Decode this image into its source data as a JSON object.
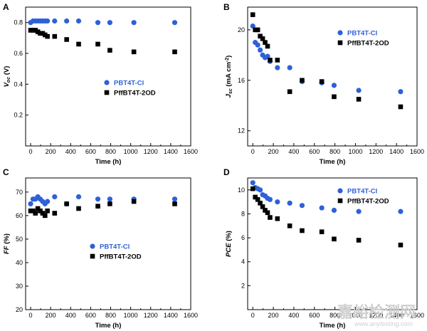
{
  "chart_data": [
    {
      "type": "scatter",
      "panel": "A",
      "xlabel": "Time (h)",
      "ylabel": "V",
      "ylabel_sub": "oc",
      "ylabel_unit": " (V)",
      "xlim": [
        -50,
        1600
      ],
      "ylim": [
        0,
        0.9
      ],
      "xticks": [
        0,
        200,
        400,
        600,
        800,
        1000,
        1200,
        1400,
        1600
      ],
      "yticks": [
        0.2,
        0.4,
        0.6,
        0.8
      ],
      "ytick_labels": [
        "0.2",
        "0.4",
        "0.6",
        "0.8"
      ],
      "legend_position": "bottom-center",
      "series": [
        {
          "name": "PBT4T-Cl",
          "color": "#2e61d8",
          "marker": "circle",
          "x": [
            0,
            24,
            48,
            72,
            96,
            120,
            144,
            168,
            240,
            360,
            480,
            672,
            792,
            1032,
            1440
          ],
          "y": [
            0.8,
            0.81,
            0.81,
            0.81,
            0.81,
            0.81,
            0.81,
            0.81,
            0.81,
            0.81,
            0.81,
            0.8,
            0.8,
            0.8,
            0.8
          ]
        },
        {
          "name": "PffBT4T-2OD",
          "color": "#000000",
          "marker": "square",
          "x": [
            0,
            24,
            48,
            72,
            96,
            120,
            144,
            168,
            240,
            360,
            480,
            672,
            792,
            1032,
            1440
          ],
          "y": [
            0.75,
            0.75,
            0.75,
            0.74,
            0.73,
            0.73,
            0.72,
            0.71,
            0.71,
            0.69,
            0.66,
            0.66,
            0.62,
            0.61,
            0.61
          ]
        }
      ]
    },
    {
      "type": "scatter",
      "panel": "B",
      "xlabel": "Time (h)",
      "ylabel": "J",
      "ylabel_sub": "sc",
      "ylabel_unit": " (mA cm",
      "ylabel_sup": "-2",
      "ylabel_end": ")",
      "xlim": [
        -50,
        1600
      ],
      "ylim": [
        10.8,
        21.8
      ],
      "xticks": [
        0,
        200,
        400,
        600,
        800,
        1000,
        1200,
        1400,
        1600
      ],
      "yticks": [
        12,
        16,
        20
      ],
      "ytick_labels": [
        "12",
        "16",
        "20"
      ],
      "legend_position": "top-right",
      "series": [
        {
          "name": "PBT4T-Cl",
          "color": "#2e61d8",
          "marker": "circle",
          "x": [
            0,
            24,
            48,
            72,
            96,
            120,
            144,
            168,
            240,
            360,
            480,
            672,
            792,
            1032,
            1440
          ],
          "y": [
            20.3,
            19.0,
            18.8,
            18.4,
            18.0,
            17.8,
            17.9,
            17.5,
            17.0,
            17.0,
            15.9,
            15.8,
            15.6,
            15.2,
            15.1
          ]
        },
        {
          "name": "PffBT4T-2OD",
          "color": "#000000",
          "marker": "square",
          "x": [
            0,
            24,
            48,
            72,
            96,
            120,
            144,
            168,
            240,
            360,
            480,
            672,
            792,
            1032,
            1440
          ],
          "y": [
            21.2,
            20.0,
            20.0,
            19.5,
            19.3,
            19.0,
            18.7,
            17.6,
            17.6,
            15.1,
            16.0,
            15.9,
            14.7,
            14.5,
            13.9
          ]
        }
      ]
    },
    {
      "type": "scatter",
      "panel": "C",
      "xlabel": "Time (h)",
      "ylabel": "FF",
      "ylabel_sub": "",
      "ylabel_unit": " (%)",
      "xlim": [
        -50,
        1600
      ],
      "ylim": [
        20,
        76
      ],
      "xticks": [
        0,
        200,
        400,
        600,
        800,
        1000,
        1200,
        1400,
        1600
      ],
      "yticks": [
        20,
        30,
        40,
        50,
        60,
        70
      ],
      "ytick_labels": [
        "20",
        "30",
        "40",
        "50",
        "60",
        "70"
      ],
      "legend_position": "center",
      "series": [
        {
          "name": "PBT4T-Cl",
          "color": "#2e61d8",
          "marker": "circle",
          "x": [
            0,
            24,
            48,
            72,
            96,
            120,
            144,
            168,
            240,
            360,
            480,
            672,
            792,
            1032,
            1440
          ],
          "y": [
            65,
            67,
            67,
            68,
            67,
            66,
            65,
            66,
            68,
            65,
            68,
            67,
            67,
            67,
            67
          ]
        },
        {
          "name": "PffBT4T-2OD",
          "color": "#000000",
          "marker": "square",
          "x": [
            0,
            24,
            48,
            72,
            96,
            120,
            144,
            168,
            240,
            360,
            480,
            672,
            792,
            1032,
            1440
          ],
          "y": [
            62,
            62,
            61,
            63,
            62,
            61,
            60,
            62,
            61,
            65,
            63,
            64,
            65,
            66,
            65
          ]
        }
      ]
    },
    {
      "type": "scatter",
      "panel": "D",
      "xlabel": "Time (h)",
      "ylabel": "PCE",
      "ylabel_sub": "",
      "ylabel_unit": " (%)",
      "xlim": [
        -50,
        1600
      ],
      "ylim": [
        0,
        11
      ],
      "xticks": [
        0,
        200,
        400,
        600,
        800,
        1000,
        1200,
        1400,
        1600
      ],
      "yticks": [
        2,
        4,
        6,
        8,
        10
      ],
      "ytick_labels": [
        "2",
        "4",
        "6",
        "8",
        "10"
      ],
      "legend_position": "top-right",
      "series": [
        {
          "name": "PBT4T-Cl",
          "color": "#2e61d8",
          "marker": "circle",
          "x": [
            0,
            24,
            48,
            72,
            96,
            120,
            144,
            168,
            240,
            360,
            480,
            672,
            792,
            1032,
            1440
          ],
          "y": [
            10.6,
            10.2,
            10.1,
            10.0,
            9.6,
            9.5,
            9.3,
            9.2,
            9.0,
            8.9,
            8.7,
            8.5,
            8.3,
            8.2,
            8.2
          ]
        },
        {
          "name": "PffBT4T-2OD",
          "color": "#000000",
          "marker": "square",
          "x": [
            0,
            24,
            48,
            72,
            96,
            120,
            144,
            168,
            240,
            360,
            480,
            672,
            792,
            1032,
            1440
          ],
          "y": [
            10.1,
            9.4,
            9.2,
            8.9,
            8.6,
            8.3,
            8.1,
            7.7,
            7.6,
            7.0,
            6.6,
            6.5,
            5.9,
            5.8,
            5.4
          ]
        }
      ]
    }
  ],
  "watermark": {
    "text": "嘉峪检测网",
    "url": "www.anytesting.com"
  }
}
